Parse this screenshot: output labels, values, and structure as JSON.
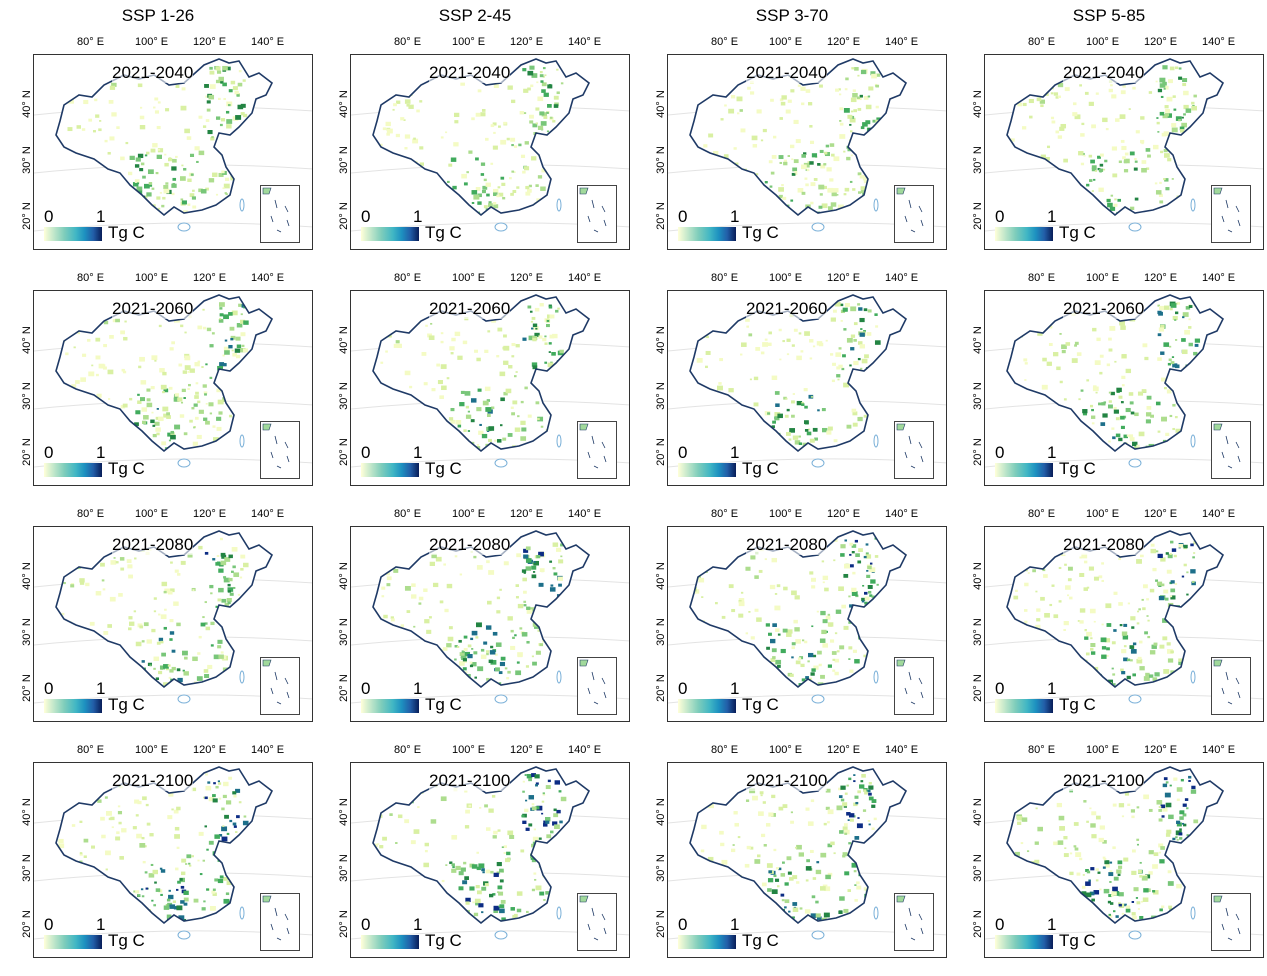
{
  "columns": [
    "SSP 1-26",
    "SSP 2-45",
    "SSP 3-70",
    "SSP 5-85"
  ],
  "rows": [
    "2021-2040",
    "2021-2060",
    "2021-2080",
    "2021-2100"
  ],
  "longitude_ticks": [
    "80° E",
    "100° E",
    "120° E",
    "140° E"
  ],
  "latitude_ticks": [
    "40° N",
    "30° N",
    "20° N"
  ],
  "legend": {
    "min": "0",
    "max": "1",
    "unit": "Tg C"
  },
  "colors": {
    "low": "#ffffd9",
    "mid": "#41b6c4",
    "high": "#081d58",
    "border": "#1f3a66",
    "water": "#7ab0d8"
  }
}
